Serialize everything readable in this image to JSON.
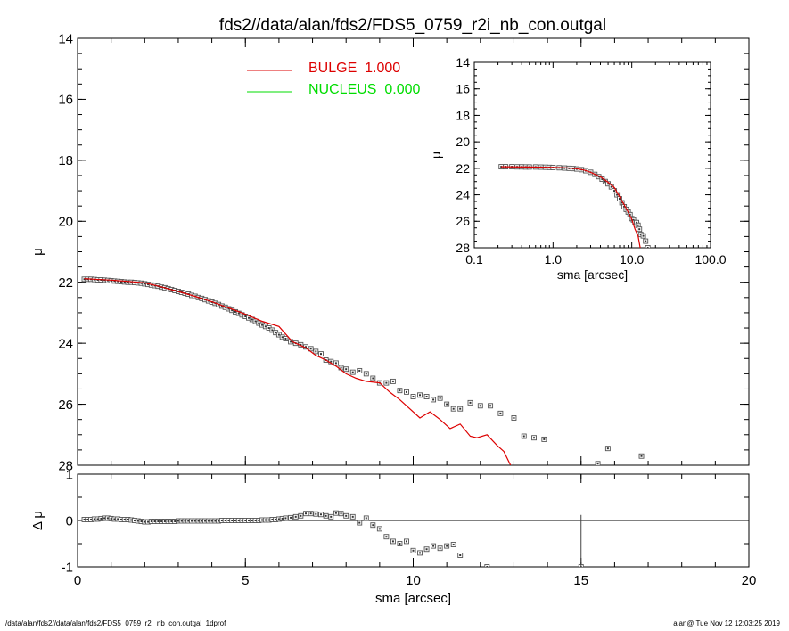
{
  "title": "fds2//data/alan/fds2/FDS5_0759_r2i_nb_con.outgal",
  "footer_left": "/data/alan/fds2//data/alan/fds2/FDS5_0759_r2i_nb_con.outgal_1dprof",
  "footer_right": "alan@  Tue Nov 12 12:03:25 2019",
  "colors": {
    "bulge": "#dd0000",
    "nucleus": "#00dd00",
    "data": "#555555"
  },
  "chart_data": [
    {
      "id": "main",
      "type": "scatter",
      "xlim": [
        0,
        20
      ],
      "ylim": [
        28,
        14
      ],
      "x_ticks": [
        "0",
        "5",
        "10",
        "15",
        "20"
      ],
      "y_ticks": [
        "14",
        "16",
        "18",
        "20",
        "22",
        "24",
        "26",
        "28"
      ],
      "ylabel": "μ",
      "legend": [
        {
          "label": "BULGE  1.000",
          "color": "#dd0000"
        },
        {
          "label": "NUCLEUS  0.000",
          "color": "#00dd00"
        }
      ],
      "legend_position": "top-center",
      "grid": false,
      "series": [
        {
          "kind": "markers",
          "x": [
            0.2,
            0.3,
            0.4,
            0.5,
            0.6,
            0.7,
            0.8,
            0.9,
            1.0,
            1.1,
            1.2,
            1.3,
            1.4,
            1.5,
            1.6,
            1.7,
            1.8,
            1.9,
            2.0,
            2.1,
            2.2,
            2.3,
            2.4,
            2.5,
            2.6,
            2.7,
            2.8,
            2.9,
            3.0,
            3.1,
            3.2,
            3.3,
            3.4,
            3.5,
            3.6,
            3.7,
            3.8,
            3.9,
            4.0,
            4.1,
            4.2,
            4.3,
            4.4,
            4.5,
            4.6,
            4.7,
            4.8,
            4.9,
            5.0,
            5.1,
            5.2,
            5.3,
            5.4,
            5.5,
            5.6,
            5.7,
            5.8,
            5.9,
            6.0,
            6.1,
            6.2,
            6.35,
            6.5,
            6.65,
            6.8,
            6.95,
            7.1,
            7.25,
            7.4,
            7.55,
            7.7,
            7.85,
            8.0,
            8.2,
            8.4,
            8.6,
            8.8,
            9.0,
            9.2,
            9.4,
            9.6,
            9.8,
            10.0,
            10.2,
            10.4,
            10.6,
            10.8,
            11.0,
            11.2,
            11.4,
            11.7,
            12.0,
            12.3,
            12.6,
            13.0,
            13.3,
            13.6,
            13.9,
            15.2,
            15.5,
            15.8,
            16.8
          ],
          "y": [
            21.9,
            21.9,
            21.9,
            21.91,
            21.92,
            21.92,
            21.93,
            21.94,
            21.95,
            21.96,
            21.97,
            21.98,
            21.99,
            22.0,
            22.0,
            22.01,
            22.02,
            22.03,
            22.05,
            22.07,
            22.09,
            22.11,
            22.13,
            22.16,
            22.18,
            22.21,
            22.24,
            22.27,
            22.3,
            22.33,
            22.36,
            22.39,
            22.43,
            22.46,
            22.5,
            22.53,
            22.57,
            22.61,
            22.65,
            22.69,
            22.73,
            22.78,
            22.82,
            22.87,
            22.92,
            22.97,
            23.02,
            23.07,
            23.12,
            23.17,
            23.22,
            23.28,
            23.34,
            23.4,
            23.45,
            23.5,
            23.57,
            23.65,
            23.72,
            23.8,
            23.85,
            23.95,
            24.0,
            24.05,
            24.12,
            24.18,
            24.27,
            24.35,
            24.55,
            24.6,
            24.65,
            24.8,
            24.85,
            24.95,
            24.9,
            25.0,
            25.15,
            25.3,
            25.3,
            25.25,
            25.55,
            25.6,
            25.75,
            25.7,
            25.75,
            25.85,
            25.8,
            26.0,
            26.15,
            26.15,
            25.95,
            26.05,
            26.05,
            26.3,
            26.45,
            27.05,
            27.1,
            27.15,
            28.1,
            27.95,
            27.45,
            27.7
          ]
        },
        {
          "kind": "line",
          "name": "BULGE",
          "color": "#dd0000",
          "x": [
            0.2,
            0.5,
            1.0,
            1.5,
            2.0,
            2.3,
            2.6,
            3.0,
            3.5,
            4.0,
            4.5,
            5.0,
            5.5,
            6.0,
            6.4,
            6.8,
            7.1,
            7.4,
            7.7,
            8.0,
            8.3,
            8.6,
            9.0,
            9.3,
            9.6,
            9.9,
            10.2,
            10.5,
            10.8,
            11.1,
            11.4,
            11.7,
            11.9,
            12.2,
            12.5,
            12.7,
            12.9
          ],
          "y": [
            21.88,
            21.9,
            21.93,
            21.97,
            22.02,
            22.1,
            22.18,
            22.3,
            22.46,
            22.64,
            22.84,
            23.05,
            23.28,
            23.45,
            23.95,
            24.15,
            24.4,
            24.55,
            24.75,
            25.0,
            25.15,
            25.25,
            25.3,
            25.6,
            25.85,
            26.15,
            26.45,
            26.25,
            26.5,
            26.8,
            26.65,
            27.05,
            27.1,
            27.0,
            27.35,
            27.55,
            28.0
          ]
        }
      ]
    },
    {
      "id": "residual",
      "type": "scatter",
      "xlim": [
        0,
        20
      ],
      "ylim": [
        -1,
        1
      ],
      "x_ticks": [
        "0",
        "5",
        "10",
        "15",
        "20"
      ],
      "y_ticks": [
        "1",
        "0",
        "-1"
      ],
      "xlabel": "sma [arcsec]",
      "ylabel": "Δ μ",
      "series": [
        {
          "kind": "markers",
          "x": [
            0.2,
            0.3,
            0.4,
            0.5,
            0.6,
            0.7,
            0.8,
            0.9,
            1.0,
            1.1,
            1.2,
            1.3,
            1.4,
            1.5,
            1.6,
            1.7,
            1.8,
            1.9,
            2.0,
            2.1,
            2.2,
            2.3,
            2.4,
            2.5,
            2.6,
            2.7,
            2.8,
            2.9,
            3.0,
            3.1,
            3.2,
            3.3,
            3.4,
            3.5,
            3.6,
            3.7,
            3.8,
            3.9,
            4.0,
            4.1,
            4.2,
            4.3,
            4.4,
            4.5,
            4.6,
            4.7,
            4.8,
            4.9,
            5.0,
            5.1,
            5.2,
            5.3,
            5.4,
            5.5,
            5.6,
            5.7,
            5.8,
            5.9,
            6.0,
            6.1,
            6.2,
            6.35,
            6.5,
            6.65,
            6.8,
            6.95,
            7.1,
            7.25,
            7.4,
            7.55,
            7.7,
            7.85,
            8.0,
            8.2,
            8.4,
            8.6,
            8.8,
            9.0,
            9.2,
            9.4,
            9.6,
            9.8,
            10.0,
            10.2,
            10.4,
            10.6,
            10.8,
            11.0,
            11.2,
            11.4,
            12.2,
            15.0
          ],
          "y": [
            0.02,
            0.02,
            0.02,
            0.03,
            0.03,
            0.04,
            0.05,
            0.05,
            0.04,
            0.03,
            0.03,
            0.02,
            0.02,
            0.02,
            0.01,
            0.0,
            -0.01,
            -0.02,
            -0.03,
            -0.03,
            -0.02,
            -0.02,
            -0.02,
            -0.02,
            -0.02,
            -0.02,
            -0.02,
            -0.02,
            -0.01,
            -0.01,
            -0.01,
            -0.01,
            -0.01,
            -0.01,
            -0.01,
            -0.01,
            -0.01,
            -0.01,
            -0.01,
            -0.01,
            -0.01,
            0.0,
            0.0,
            0.0,
            0.0,
            0.0,
            0.0,
            0.0,
            0.0,
            0.0,
            0.0,
            0.0,
            0.0,
            0.01,
            0.01,
            0.01,
            0.02,
            0.02,
            0.03,
            0.04,
            0.05,
            0.06,
            0.08,
            0.1,
            0.15,
            0.15,
            0.14,
            0.13,
            0.1,
            0.08,
            0.16,
            0.15,
            0.1,
            0.08,
            -0.05,
            0.05,
            -0.1,
            -0.18,
            -0.35,
            -0.45,
            -0.5,
            -0.45,
            -0.65,
            -0.7,
            -0.62,
            -0.55,
            -0.6,
            -0.55,
            -0.52,
            -0.75,
            -1.0,
            -1.0
          ]
        },
        {
          "kind": "vline",
          "x": 15.0,
          "y": [
            0.12,
            -1.0
          ]
        }
      ]
    },
    {
      "id": "inset",
      "type": "scatter",
      "log_x": true,
      "xlim": [
        0.1,
        100
      ],
      "ylim": [
        28,
        14
      ],
      "x_ticks": [
        "0.1",
        "1.0",
        "10.0",
        "100.0"
      ],
      "y_ticks": [
        "14",
        "16",
        "18",
        "20",
        "22",
        "24",
        "26",
        "28"
      ],
      "xlabel": "sma [arcsec]",
      "ylabel": "μ",
      "series": [
        {
          "kind": "markers",
          "x": [
            0.22,
            0.25,
            0.3,
            0.35,
            0.4,
            0.45,
            0.5,
            0.6,
            0.7,
            0.8,
            0.9,
            1.0,
            1.2,
            1.4,
            1.6,
            1.8,
            2.0,
            2.3,
            2.6,
            3.0,
            3.4,
            3.8,
            4.2,
            4.6,
            5.0,
            5.5,
            6.0,
            6.5,
            7.0,
            7.5,
            8.0,
            8.5,
            9.0,
            9.5,
            10.0,
            10.5,
            11.0,
            11.5,
            12.0,
            12.5,
            13.0,
            14.0,
            15.0,
            16.0
          ],
          "y": [
            21.88,
            21.88,
            21.88,
            21.89,
            21.89,
            21.9,
            21.9,
            21.9,
            21.91,
            21.92,
            21.93,
            21.94,
            21.96,
            21.98,
            22.0,
            22.02,
            22.05,
            22.1,
            22.18,
            22.3,
            22.46,
            22.63,
            22.82,
            23.0,
            23.17,
            23.4,
            23.7,
            24.0,
            24.3,
            24.6,
            24.9,
            25.1,
            25.3,
            25.5,
            25.8,
            25.9,
            26.1,
            26.1,
            26.3,
            26.6,
            27.0,
            27.1,
            27.5,
            28.0
          ]
        },
        {
          "kind": "line",
          "name": "BULGE",
          "color": "#dd0000",
          "x": [
            0.22,
            0.5,
            1.0,
            1.5,
            2.0,
            2.5,
            3.0,
            4.0,
            5.0,
            6.0,
            7.0,
            8.0,
            9.0,
            10.0,
            11.0,
            12.0,
            12.8
          ],
          "y": [
            21.88,
            21.9,
            21.93,
            21.97,
            22.03,
            22.14,
            22.3,
            22.64,
            23.05,
            23.45,
            24.15,
            24.75,
            25.3,
            25.85,
            26.6,
            27.1,
            28.0
          ]
        }
      ]
    }
  ]
}
